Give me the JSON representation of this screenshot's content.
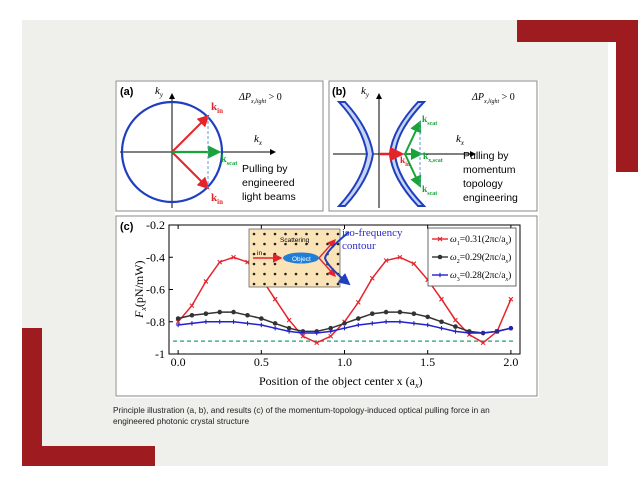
{
  "caption": "Principle illustration (a, b), and results (c) of the momentum-topology-induced optical pulling force in an engineered photonic crystal structure",
  "colors": {
    "accent_red": "#9e1b20",
    "slide_bg": "#efefeb",
    "blue": "#1f3fbf",
    "red": "#e4242b",
    "green": "#1aa33a"
  },
  "panel_a": {
    "label": "(a)",
    "ky": "k",
    "ky_sub": "y",
    "kx": "k",
    "kx_sub": "x",
    "dp_text": "ΔP",
    "dp_sub": "x,light",
    "dp_rest": " > 0",
    "kin": "k",
    "kin_sub": "in",
    "kscat": "k",
    "kscat_sub": "scat",
    "desc": [
      "Pulling by",
      "engineered",
      "light beams"
    ]
  },
  "panel_b": {
    "label": "(b)",
    "ky": "k",
    "ky_sub": "y",
    "kx": "k",
    "kx_sub": "x",
    "dp_text": "ΔP",
    "dp_sub": "x,light",
    "dp_rest": " > 0",
    "kin": "k",
    "kin_sub": "in",
    "kscat": "k",
    "kscat_sub": "scat",
    "kxscat": "k",
    "kxscat_sub": "x,scat",
    "desc": [
      "Pulling by",
      "momentum",
      "topology",
      "engineering"
    ]
  },
  "panel_c": {
    "label": "(c)",
    "inset_scattering": "Scattering",
    "inset_in": "in",
    "inset_object": "Object",
    "iso_label": [
      "iso-frequency",
      "contour"
    ]
  },
  "chart_data": {
    "type": "line",
    "xlabel": "Position of the object center x (a",
    "xlabel_sub": "x",
    "xlabel_end": ")",
    "ylabel": "F",
    "ylabel_sub": "x",
    "ylabel_rest": "(pN/mW)",
    "xlim": [
      0.0,
      2.0
    ],
    "ylim": [
      -1.0,
      -0.2
    ],
    "xticks": [
      "0.0",
      "0.5",
      "1.0",
      "1.5",
      "2.0"
    ],
    "yticks": [
      "-0.2",
      "-0.4",
      "-0.6",
      "-0.8",
      "-1"
    ],
    "legend_position": "top-right",
    "reference_line": -0.92,
    "series": [
      {
        "name": "ω1=0.31(2πc/ax)",
        "legend_omega": "ω",
        "legend_idx": "1",
        "legend_val": "=0.31(2πc/a",
        "legend_end": ")",
        "color": "#e4242b",
        "marker": "cross",
        "x": [
          0.0,
          0.083,
          0.167,
          0.25,
          0.333,
          0.417,
          0.5,
          0.583,
          0.667,
          0.75,
          0.833,
          0.917,
          1.0,
          1.083,
          1.167,
          1.25,
          1.333,
          1.417,
          1.5,
          1.583,
          1.667,
          1.75,
          1.833,
          1.917,
          2.0
        ],
        "y": [
          -0.8,
          -0.7,
          -0.55,
          -0.43,
          -0.4,
          -0.43,
          -0.53,
          -0.66,
          -0.79,
          -0.89,
          -0.93,
          -0.89,
          -0.8,
          -0.68,
          -0.53,
          -0.42,
          -0.4,
          -0.44,
          -0.54,
          -0.66,
          -0.79,
          -0.88,
          -0.93,
          -0.86,
          -0.66
        ]
      },
      {
        "name": "ω2=0.29(2πc/ax)",
        "legend_omega": "ω",
        "legend_idx": "2",
        "legend_val": "=0.29(2πc/a",
        "legend_end": ")",
        "color": "#333333",
        "marker": "circle",
        "x": [
          0.0,
          0.083,
          0.167,
          0.25,
          0.333,
          0.417,
          0.5,
          0.583,
          0.667,
          0.75,
          0.833,
          0.917,
          1.0,
          1.083,
          1.167,
          1.25,
          1.333,
          1.417,
          1.5,
          1.583,
          1.667,
          1.75,
          1.833,
          1.917,
          2.0
        ],
        "y": [
          -0.78,
          -0.76,
          -0.75,
          -0.74,
          -0.74,
          -0.76,
          -0.78,
          -0.81,
          -0.84,
          -0.86,
          -0.86,
          -0.84,
          -0.81,
          -0.78,
          -0.75,
          -0.74,
          -0.74,
          -0.75,
          -0.77,
          -0.8,
          -0.83,
          -0.86,
          -0.87,
          -0.86,
          -0.84
        ]
      },
      {
        "name": "ω3=0.28(2πc/ax)",
        "legend_omega": "ω",
        "legend_idx": "3",
        "legend_val": "=0.28(2πc/a",
        "legend_end": ")",
        "color": "#2222cc",
        "marker": "plus",
        "x": [
          0.0,
          0.083,
          0.167,
          0.25,
          0.333,
          0.417,
          0.5,
          0.583,
          0.667,
          0.75,
          0.833,
          0.917,
          1.0,
          1.083,
          1.167,
          1.25,
          1.333,
          1.417,
          1.5,
          1.583,
          1.667,
          1.75,
          1.833,
          1.917,
          2.0
        ],
        "y": [
          -0.82,
          -0.81,
          -0.8,
          -0.8,
          -0.8,
          -0.81,
          -0.82,
          -0.84,
          -0.86,
          -0.87,
          -0.87,
          -0.86,
          -0.84,
          -0.82,
          -0.81,
          -0.8,
          -0.8,
          -0.81,
          -0.82,
          -0.84,
          -0.86,
          -0.87,
          -0.87,
          -0.86,
          -0.84
        ]
      }
    ]
  }
}
